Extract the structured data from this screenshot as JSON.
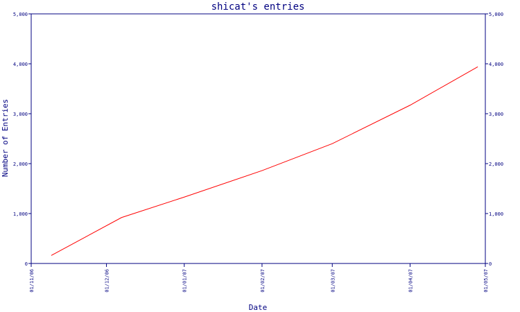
{
  "chart_data": {
    "type": "line",
    "title": "shicat's entries",
    "xlabel": "Date",
    "ylabel": "Number of Entries",
    "x_tick_labels": [
      "01/11/06",
      "01/12/06",
      "01/01/07",
      "01/02/07",
      "01/03/07",
      "01/04/07",
      "01/05/07"
    ],
    "y_tick_labels_left": [
      "0",
      "1,000",
      "2,000",
      "3,000",
      "4,000",
      "5,000"
    ],
    "y_tick_labels_right": [
      "0",
      "1,000",
      "2,000",
      "3,000",
      "4,000",
      "5,000"
    ],
    "xlim": [
      "2006-11-01",
      "2007-05-01"
    ],
    "ylim": [
      0,
      5000
    ],
    "y_ticks": [
      0,
      1000,
      2000,
      3000,
      4000,
      5000
    ],
    "grid": false,
    "series": [
      {
        "color": "#ff0000",
        "points": [
          {
            "x": "2006-11-09",
            "y": 160
          },
          {
            "x": "2006-12-07",
            "y": 920
          },
          {
            "x": "2007-01-01",
            "y": 1330
          },
          {
            "x": "2007-02-01",
            "y": 1860
          },
          {
            "x": "2007-03-01",
            "y": 2400
          },
          {
            "x": "2007-04-01",
            "y": 3170
          },
          {
            "x": "2007-04-28",
            "y": 3940
          }
        ]
      }
    ],
    "colors": {
      "axis": "#000080",
      "text": "#000080",
      "line": "#ff0000",
      "background": "#ffffff"
    }
  }
}
